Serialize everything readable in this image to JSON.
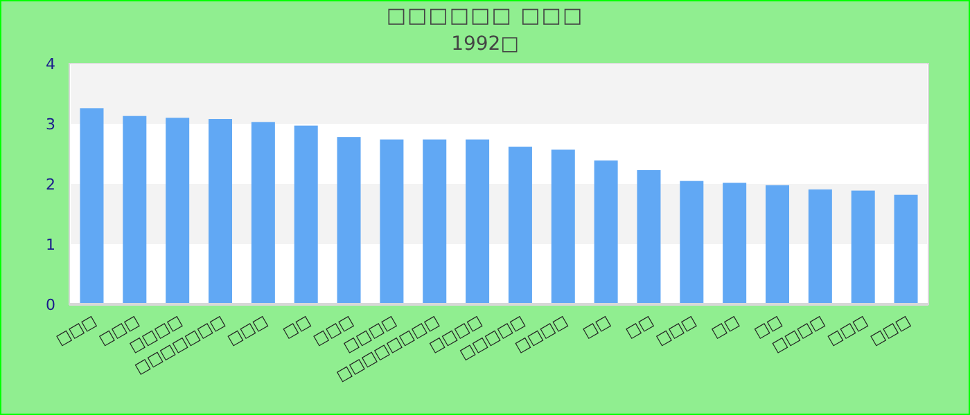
{
  "chart_data": {
    "type": "bar",
    "title": "□□□□□□ □□□",
    "subtitle": "1992□",
    "categories": [
      "□□□",
      "□□□",
      "□□□□",
      "□□□□□□□",
      "□□□",
      "□□",
      "□□□",
      "□□□□",
      "□□□□□□□□",
      "□□□□",
      "□□□□□",
      "□□□□",
      "□□",
      "□□",
      "□□□",
      "□□",
      "□□",
      "□□□□",
      "□□□",
      "□□□"
    ],
    "values": [
      3.26,
      3.13,
      3.1,
      3.08,
      3.03,
      2.97,
      2.78,
      2.74,
      2.74,
      2.74,
      2.62,
      2.57,
      2.39,
      2.23,
      2.05,
      2.02,
      1.98,
      1.91,
      1.89,
      1.82
    ],
    "color": "#61a8f4",
    "ylim": [
      0,
      4
    ],
    "yticks": [
      0,
      1,
      2,
      3,
      4
    ]
  }
}
